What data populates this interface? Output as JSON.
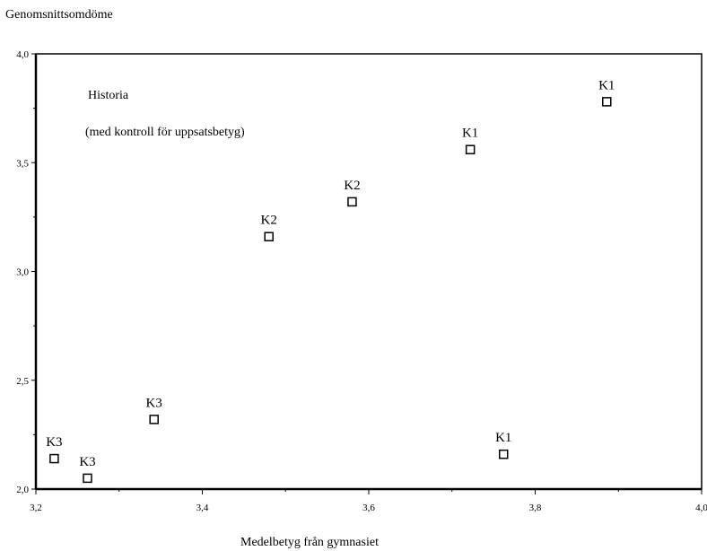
{
  "chart_data": {
    "type": "scatter",
    "xlabel": "Medelbetyg från gymnasiet",
    "ylabel": "Genomsnittsomdöme",
    "xlim": [
      3.2,
      4.0
    ],
    "ylim": [
      2.0,
      4.0
    ],
    "grid": false,
    "x_ticks": [
      "3,2",
      "3,4",
      "3,6",
      "3,8",
      "4,0"
    ],
    "x_tick_values": [
      3.2,
      3.4,
      3.6,
      3.8,
      4.0
    ],
    "y_ticks": [
      "2,0",
      "2,5",
      "3,0",
      "3,5",
      "4,0"
    ],
    "y_tick_values": [
      2.0,
      2.5,
      3.0,
      3.5,
      4.0
    ],
    "annotations": [
      "Historia",
      "(med kontroll för uppsatsbetyg)"
    ],
    "marker": "open-square",
    "points": [
      {
        "x": 3.222,
        "y": 2.14,
        "label": "K3"
      },
      {
        "x": 3.262,
        "y": 2.05,
        "label": "K3"
      },
      {
        "x": 3.342,
        "y": 2.32,
        "label": "K3"
      },
      {
        "x": 3.48,
        "y": 3.16,
        "label": "K2"
      },
      {
        "x": 3.58,
        "y": 3.32,
        "label": "K2"
      },
      {
        "x": 3.722,
        "y": 3.56,
        "label": "K1"
      },
      {
        "x": 3.762,
        "y": 2.16,
        "label": "K1"
      },
      {
        "x": 3.886,
        "y": 3.78,
        "label": "K1"
      }
    ]
  }
}
